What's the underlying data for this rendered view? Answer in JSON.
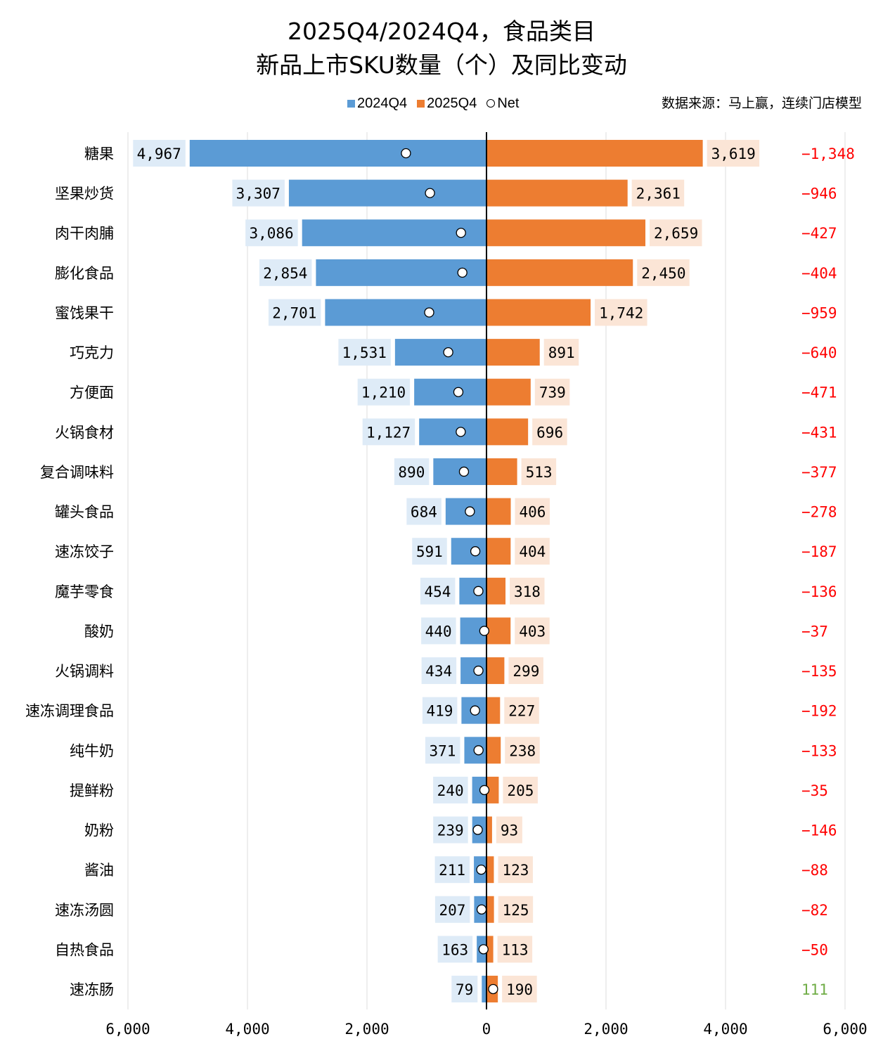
{
  "title_line1": "2025Q4/2024Q4，食品类目",
  "title_line2": "新品上市SKU数量（个）及同比变动",
  "source": "数据来源：马上赢，连续门店模型",
  "legend": {
    "s1": "2024Q4",
    "s2": "2025Q4",
    "s3": "Net"
  },
  "colors": {
    "s2024": "#5B9BD5",
    "s2025": "#ED7D31",
    "label2024_bg": "#DEEBF7",
    "label2025_bg": "#FBE5D6",
    "net_negative": "#FF0000",
    "net_positive": "#70AD47",
    "grid": "#E8E8E8"
  },
  "chart_data": {
    "type": "bar",
    "orientation": "horizontal-butterfly",
    "title": "2025Q4/2024Q4，食品类目 新品上市SKU数量（个）及同比变动",
    "categories": [
      "糖果",
      "坚果炒货",
      "肉干肉脯",
      "膨化食品",
      "蜜饯果干",
      "巧克力",
      "方便面",
      "火锅食材",
      "复合调味料",
      "罐头食品",
      "速冻饺子",
      "魔芋零食",
      "酸奶",
      "火锅调料",
      "速冻调理食品",
      "纯牛奶",
      "提鲜粉",
      "奶粉",
      "酱油",
      "速冻汤圆",
      "自热食品",
      "速冻肠"
    ],
    "series": [
      {
        "name": "2024Q4",
        "values": [
          4967,
          3307,
          3086,
          2854,
          2701,
          1531,
          1210,
          1127,
          890,
          684,
          591,
          454,
          440,
          434,
          419,
          371,
          240,
          239,
          211,
          207,
          163,
          79
        ]
      },
      {
        "name": "2025Q4",
        "values": [
          3619,
          2361,
          2659,
          2450,
          1742,
          891,
          739,
          696,
          513,
          406,
          404,
          318,
          403,
          299,
          227,
          238,
          205,
          93,
          123,
          125,
          113,
          190
        ]
      },
      {
        "name": "Net",
        "values": [
          -1348,
          -946,
          -427,
          -404,
          -959,
          -640,
          -471,
          -431,
          -377,
          -278,
          -187,
          -136,
          -37,
          -135,
          -192,
          -133,
          -35,
          -146,
          -88,
          -82,
          -50,
          111
        ]
      }
    ],
    "xlim": [
      -6000,
      6000
    ],
    "x_ticks": [
      "6,000",
      "4,000",
      "2,000",
      "0",
      "2,000",
      "4,000",
      "6,000"
    ],
    "grid": true,
    "legend_position": "top"
  }
}
